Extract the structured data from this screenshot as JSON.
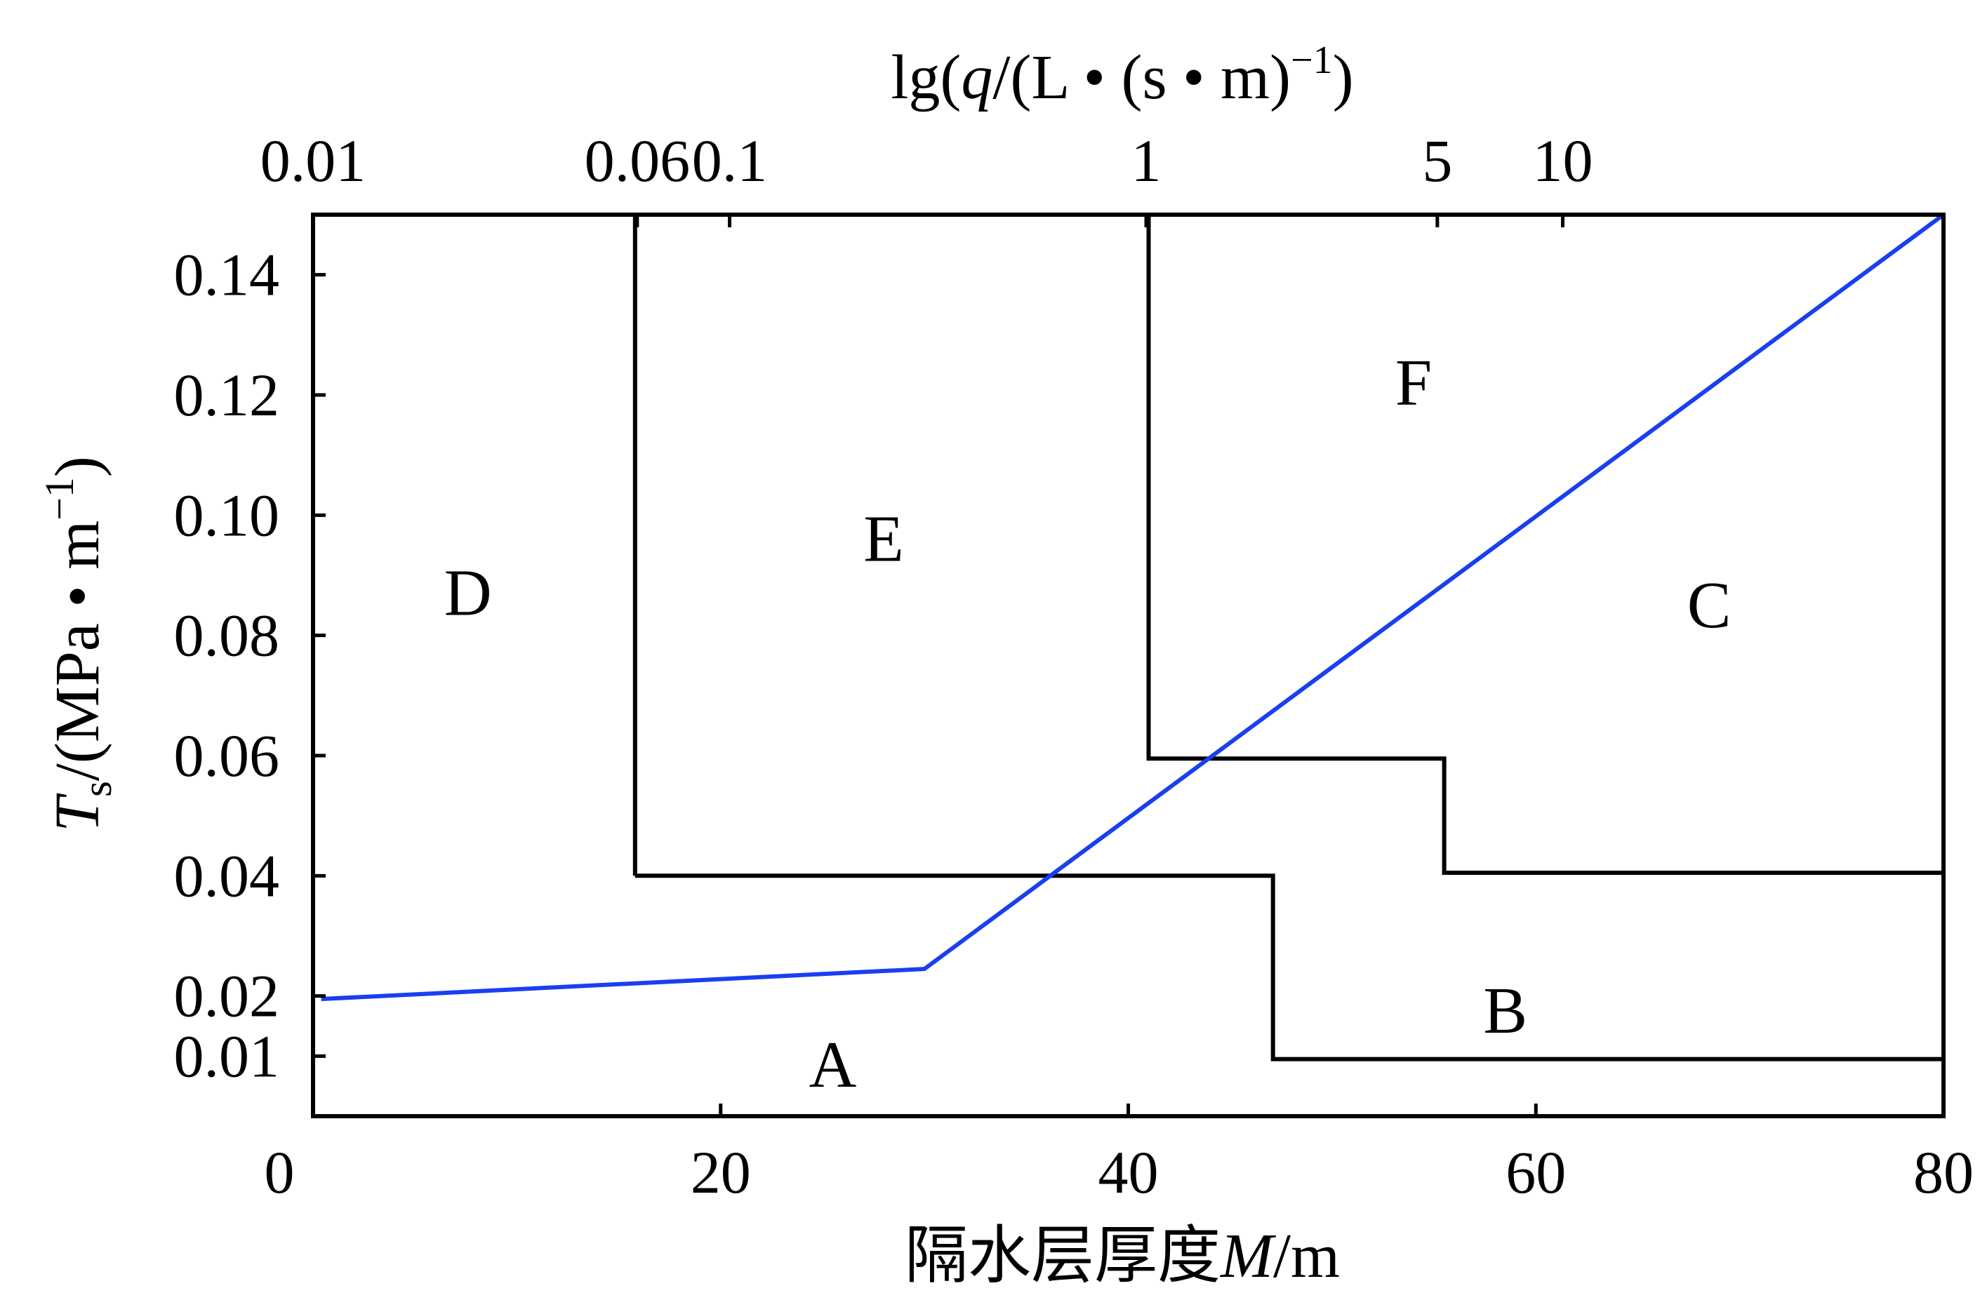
{
  "chart_data": {
    "type": "line",
    "xlabel_bottom": "隔水层厚度M/m",
    "xlabel_bottom_parts": {
      "prefix": "隔水层厚度",
      "symbol": "M",
      "unit": "/m"
    },
    "xlim": [
      0,
      80
    ],
    "bottom_ticks": [
      {
        "value": 0,
        "label": "0"
      },
      {
        "value": 20,
        "label": "20"
      },
      {
        "value": 40,
        "label": "40"
      },
      {
        "value": 60,
        "label": "60"
      },
      {
        "value": 80,
        "label": "80"
      }
    ],
    "xlabel_top": "lg(q/(L • (s • m)−1)",
    "xlabel_top_parts": {
      "a": "lg(",
      "q": "q",
      "b": "/(L • (s • m)",
      "sup": "−1",
      "c": ")"
    },
    "top_ticks": [
      {
        "value": 0.01,
        "label": "0.01"
      },
      {
        "value": 0.06,
        "label": "0.06"
      },
      {
        "value": 0.1,
        "label": "0.1"
      },
      {
        "value": 1,
        "label": "1"
      },
      {
        "value": 5,
        "label": "5"
      },
      {
        "value": 10,
        "label": "10"
      }
    ],
    "ylabel": "Ts/(MPa • m−1)",
    "ylabel_parts": {
      "T": "T",
      "sub": "s",
      "b": "/(MPa • m",
      "sup": "−1",
      "c": ")"
    },
    "ylim": [
      0,
      0.15
    ],
    "y_ticks": [
      {
        "value": 0.01,
        "label": "0.01"
      },
      {
        "value": 0.02,
        "label": "0.02"
      },
      {
        "value": 0.04,
        "label": "0.04"
      },
      {
        "value": 0.06,
        "label": "0.06"
      },
      {
        "value": 0.08,
        "label": "0.08"
      },
      {
        "value": 0.1,
        "label": "0.10"
      },
      {
        "value": 0.12,
        "label": "0.12"
      },
      {
        "value": 0.14,
        "label": "0.14"
      }
    ],
    "series": [
      {
        "color": "#1a3ff0",
        "points": [
          [
            0.4,
            0.0195
          ],
          [
            30,
            0.0245
          ],
          [
            80,
            0.15
          ]
        ]
      }
    ],
    "boundaries": [
      {
        "id": "left-vertical",
        "points": [
          [
            15.8,
            0.15
          ],
          [
            15.8,
            0.04
          ]
        ]
      },
      {
        "id": "lower-step",
        "points": [
          [
            15.8,
            0.04
          ],
          [
            47.1,
            0.04
          ],
          [
            47.1,
            0.0095
          ],
          [
            80,
            0.0095
          ]
        ]
      },
      {
        "id": "upper-step",
        "points": [
          [
            41.0,
            0.15
          ],
          [
            41.0,
            0.0595
          ],
          [
            55.5,
            0.0595
          ],
          [
            55.5,
            0.0405
          ],
          [
            80,
            0.0405
          ]
        ]
      }
    ],
    "regions": [
      {
        "label": "A",
        "x": 25.5,
        "y": 0.0085
      },
      {
        "label": "B",
        "x": 58.5,
        "y": 0.0175
      },
      {
        "label": "C",
        "x": 68.5,
        "y": 0.085
      },
      {
        "label": "D",
        "x": 7.6,
        "y": 0.087
      },
      {
        "label": "E",
        "x": 28.0,
        "y": 0.096
      },
      {
        "label": "F",
        "x": 54.0,
        "y": 0.122
      }
    ],
    "grid": false
  }
}
